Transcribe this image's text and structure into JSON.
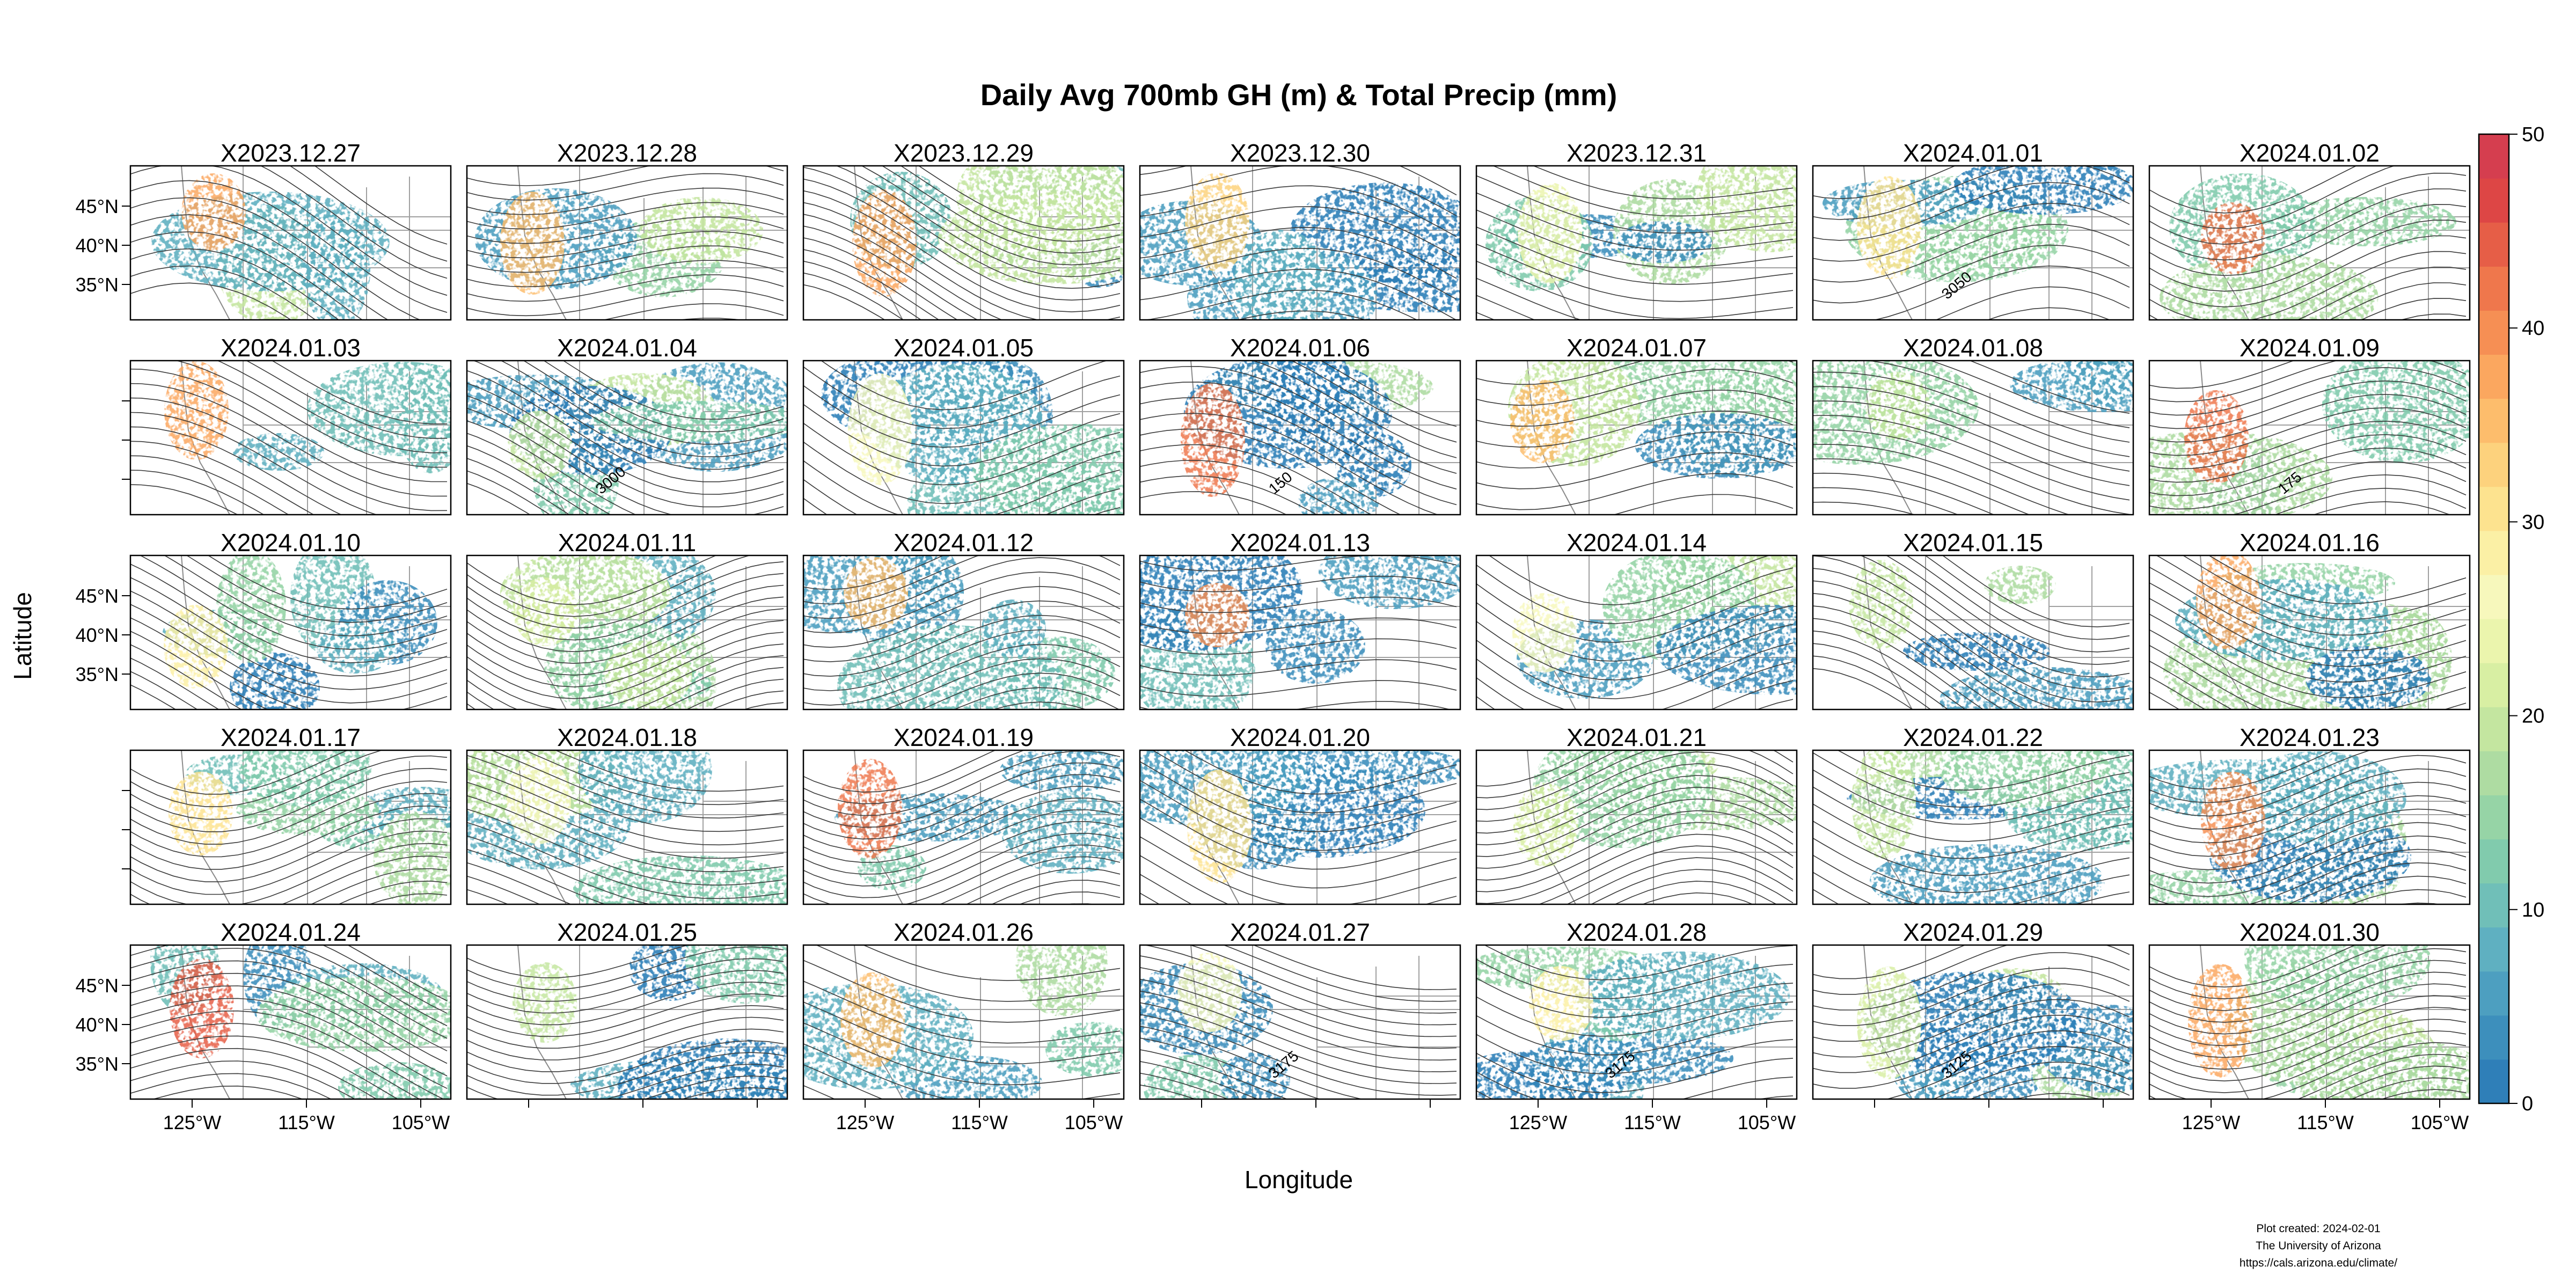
{
  "chart_data": {
    "type": "heatmap",
    "title": "Daily Avg 700mb GH (m) & Total Precip (mm)",
    "xlabel": "Longitude",
    "ylabel": "Latitude",
    "x_ticks": [
      "125°W",
      "115°W",
      "105°W"
    ],
    "y_ticks": [
      "45°N",
      "40°N",
      "35°N"
    ],
    "colorbar": {
      "min": 0,
      "max": 50,
      "ticks": [
        0,
        10,
        20,
        30,
        40,
        50
      ],
      "colors": [
        "#2f7fb8",
        "#3d8fbc",
        "#4d9fc0",
        "#5fb0c1",
        "#70bfb8",
        "#81cbad",
        "#96d4a6",
        "#aedca2",
        "#c4e6a0",
        "#d8efa3",
        "#ebf5ad",
        "#f7f8bc",
        "#fbf0a5",
        "#fde38f",
        "#fdd27d",
        "#fdbd6c",
        "#fba75f",
        "#f68f54",
        "#ef774c",
        "#e65e47",
        "#dd4645",
        "#d53e4f"
      ]
    },
    "grid": {
      "rows": 5,
      "cols": 7
    },
    "panels": [
      "X2023.12.27",
      "X2023.12.28",
      "X2023.12.29",
      "X2023.12.30",
      "X2023.12.31",
      "X2024.01.01",
      "X2024.01.02",
      "X2024.01.03",
      "X2024.01.04",
      "X2024.01.05",
      "X2024.01.06",
      "X2024.01.07",
      "X2024.01.08",
      "X2024.01.09",
      "X2024.01.10",
      "X2024.01.11",
      "X2024.01.12",
      "X2024.01.13",
      "X2024.01.14",
      "X2024.01.15",
      "X2024.01.16",
      "X2024.01.17",
      "X2024.01.18",
      "X2024.01.19",
      "X2024.01.20",
      "X2024.01.21",
      "X2024.01.22",
      "X2024.01.23",
      "X2024.01.24",
      "X2024.01.25",
      "X2024.01.26",
      "X2024.01.27",
      "X2024.01.28",
      "X2024.01.29",
      "X2024.01.30"
    ],
    "contour_labels": [
      {
        "panel": 5,
        "text": "3050"
      },
      {
        "panel": 8,
        "text": "3000"
      },
      {
        "panel": 10,
        "text": "150"
      },
      {
        "panel": 13,
        "text": "175"
      },
      {
        "panel": 31,
        "text": "3175"
      },
      {
        "panel": 32,
        "text": "3175"
      },
      {
        "panel": 33,
        "text": "3125"
      }
    ]
  },
  "credits": {
    "line1": "Plot created: 2024-02-01",
    "line2": "The University of Arizona",
    "line3": "https://cals.arizona.edu/climate/"
  }
}
